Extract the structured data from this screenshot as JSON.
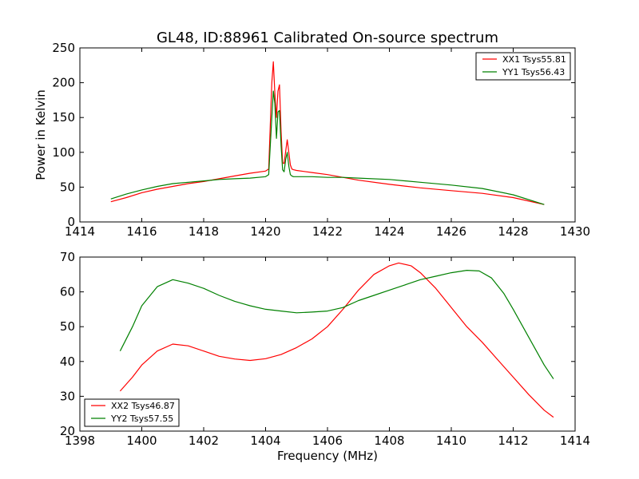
{
  "chart_data": [
    {
      "type": "line",
      "title": "GL48, ID:88961 Calibrated On-source spectrum",
      "xlabel": "",
      "ylabel": "Power in Kelvin",
      "xlim": [
        1414,
        1430
      ],
      "ylim": [
        0,
        250
      ],
      "xticks": [
        1414,
        1416,
        1418,
        1420,
        1422,
        1424,
        1426,
        1428,
        1430
      ],
      "yticks": [
        0,
        50,
        100,
        150,
        200,
        250
      ],
      "grid": false,
      "legend_position": "top-right",
      "series": [
        {
          "name": "XX1 Tsys55.81",
          "color": "#ff0000",
          "x": [
            1415.0,
            1415.5,
            1416.0,
            1416.5,
            1417.0,
            1417.5,
            1418.0,
            1418.5,
            1419.0,
            1419.5,
            1420.0,
            1420.1,
            1420.2,
            1420.25,
            1420.3,
            1420.35,
            1420.4,
            1420.45,
            1420.5,
            1420.55,
            1420.6,
            1420.65,
            1420.7,
            1420.75,
            1420.8,
            1420.85,
            1420.9,
            1421.0,
            1421.5,
            1422.0,
            1422.5,
            1423.0,
            1424.0,
            1425.0,
            1426.0,
            1427.0,
            1428.0,
            1429.0
          ],
          "y": [
            29,
            35,
            42,
            47,
            51,
            55,
            58,
            62,
            66,
            70,
            73,
            76,
            200,
            230,
            185,
            150,
            188,
            197,
            130,
            85,
            84,
            102,
            118,
            100,
            82,
            76,
            75,
            74,
            71,
            68,
            64,
            60,
            54,
            49,
            45,
            41,
            35,
            25
          ]
        },
        {
          "name": "YY1 Tsys56.43",
          "color": "#008000",
          "x": [
            1415.0,
            1415.5,
            1416.0,
            1416.5,
            1417.0,
            1417.5,
            1418.0,
            1418.5,
            1419.0,
            1419.5,
            1420.0,
            1420.1,
            1420.2,
            1420.25,
            1420.3,
            1420.35,
            1420.4,
            1420.45,
            1420.5,
            1420.55,
            1420.6,
            1420.65,
            1420.7,
            1420.75,
            1420.8,
            1420.85,
            1420.9,
            1421.0,
            1421.5,
            1422.0,
            1422.5,
            1423.0,
            1424.0,
            1425.0,
            1426.0,
            1427.0,
            1428.0,
            1429.0
          ],
          "y": [
            33,
            40,
            46,
            51,
            55,
            57,
            59,
            61,
            62,
            63,
            65,
            68,
            150,
            188,
            170,
            120,
            158,
            160,
            110,
            75,
            72,
            90,
            100,
            80,
            68,
            66,
            65,
            65,
            65,
            64,
            64,
            63,
            61,
            57,
            53,
            48,
            39,
            25
          ]
        }
      ]
    },
    {
      "type": "line",
      "title": "",
      "xlabel": "Frequency (MHz)",
      "ylabel": "",
      "xlim": [
        1398,
        1414
      ],
      "ylim": [
        20,
        70
      ],
      "xticks": [
        1398,
        1400,
        1402,
        1404,
        1406,
        1408,
        1410,
        1412,
        1414
      ],
      "yticks": [
        20,
        30,
        40,
        50,
        60,
        70
      ],
      "grid": false,
      "legend_position": "bottom-left",
      "series": [
        {
          "name": "XX2 Tsys46.87",
          "color": "#ff0000",
          "x": [
            1399.3,
            1399.7,
            1400.0,
            1400.5,
            1401.0,
            1401.5,
            1402.0,
            1402.5,
            1403.0,
            1403.5,
            1404.0,
            1404.5,
            1405.0,
            1405.5,
            1406.0,
            1406.5,
            1407.0,
            1407.5,
            1408.0,
            1408.3,
            1408.7,
            1409.0,
            1409.5,
            1410.0,
            1410.5,
            1411.0,
            1411.5,
            1412.0,
            1412.5,
            1413.0,
            1413.3
          ],
          "y": [
            31.5,
            35.5,
            39,
            43,
            45,
            44.5,
            43,
            41.5,
            40.7,
            40.3,
            40.8,
            42,
            44,
            46.5,
            50,
            55,
            60.5,
            65,
            67.5,
            68.3,
            67.5,
            65.5,
            61,
            55.5,
            50,
            45.5,
            40.5,
            35.5,
            30.5,
            26,
            24
          ]
        },
        {
          "name": "YY2 Tsys57.55",
          "color": "#008000",
          "x": [
            1399.3,
            1399.7,
            1400.0,
            1400.5,
            1401.0,
            1401.5,
            1402.0,
            1402.5,
            1403.0,
            1403.5,
            1404.0,
            1404.5,
            1405.0,
            1405.5,
            1406.0,
            1406.5,
            1407.0,
            1407.5,
            1408.0,
            1408.5,
            1409.0,
            1409.5,
            1410.0,
            1410.5,
            1410.9,
            1411.3,
            1411.7,
            1412.0,
            1412.5,
            1413.0,
            1413.3
          ],
          "y": [
            43,
            50,
            56,
            61.5,
            63.5,
            62.5,
            61,
            59,
            57.3,
            56,
            55,
            54.5,
            54,
            54.2,
            54.5,
            55.5,
            57.5,
            59,
            60.5,
            62,
            63.5,
            64.5,
            65.5,
            66.2,
            66,
            64,
            59.5,
            55,
            47,
            39,
            35
          ]
        }
      ]
    }
  ]
}
